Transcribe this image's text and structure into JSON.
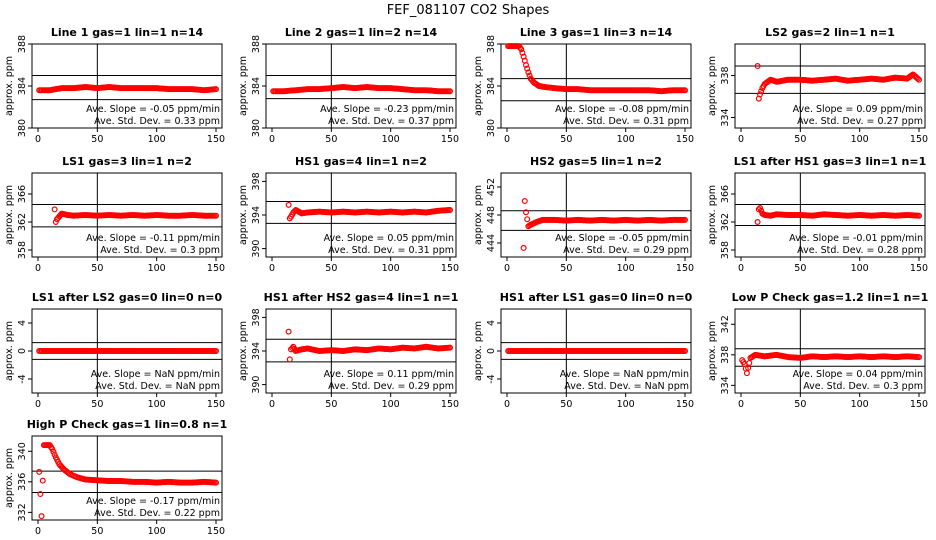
{
  "figure": {
    "title": "FEF_081107  CO2 Shapes",
    "ylabel": "approx. ppm",
    "annotation_prefixes": {
      "slope": "Ave. Slope = ",
      "sd": "Ave. Std. Dev. = "
    },
    "annotation_units": {
      "slope": " ppm/min",
      "sd": " ppm"
    },
    "point_color": "#ff0000",
    "line_color": "#000000"
  },
  "chart_data": [
    {
      "type": "scatter",
      "title": "Line 1 gas=1 lin=1 n=14",
      "xlim": [
        0,
        150
      ],
      "ylim": [
        380,
        388
      ],
      "yticks": [
        "380",
        "384",
        "388"
      ],
      "xticks": [
        "0",
        "50",
        "100",
        "150"
      ],
      "hlines": [
        385.0,
        382.7
      ],
      "vline": 50,
      "ave_slope": "-0.05",
      "ave_std_dev": "0.33",
      "points": [
        [
          1,
          383.6
        ],
        [
          10,
          383.6
        ],
        [
          20,
          383.8
        ],
        [
          30,
          383.8
        ],
        [
          40,
          383.9
        ],
        [
          50,
          383.8
        ],
        [
          60,
          383.9
        ],
        [
          70,
          383.8
        ],
        [
          80,
          383.8
        ],
        [
          90,
          383.8
        ],
        [
          100,
          383.8
        ],
        [
          110,
          383.7
        ],
        [
          120,
          383.7
        ],
        [
          130,
          383.7
        ],
        [
          140,
          383.6
        ],
        [
          150,
          383.7
        ]
      ]
    },
    {
      "type": "scatter",
      "title": "Line 2 gas=1 lin=2 n=14",
      "xlim": [
        0,
        150
      ],
      "ylim": [
        380,
        388
      ],
      "yticks": [
        "380",
        "384",
        "388"
      ],
      "xticks": [
        "0",
        "50",
        "100",
        "150"
      ],
      "hlines": [
        385.0,
        382.8
      ],
      "vline": 50,
      "ave_slope": "-0.23",
      "ave_std_dev": "0.37",
      "points": [
        [
          1,
          383.5
        ],
        [
          10,
          383.5
        ],
        [
          20,
          383.6
        ],
        [
          30,
          383.7
        ],
        [
          40,
          383.7
        ],
        [
          50,
          383.8
        ],
        [
          60,
          383.9
        ],
        [
          70,
          383.8
        ],
        [
          80,
          383.9
        ],
        [
          90,
          383.8
        ],
        [
          100,
          383.8
        ],
        [
          110,
          383.7
        ],
        [
          120,
          383.6
        ],
        [
          130,
          383.6
        ],
        [
          140,
          383.5
        ],
        [
          150,
          383.5
        ]
      ]
    },
    {
      "type": "scatter",
      "title": "Line 3 gas=1 lin=3 n=14",
      "xlim": [
        0,
        150
      ],
      "ylim": [
        380,
        388
      ],
      "yticks": [
        "380",
        "384",
        "388"
      ],
      "xticks": [
        "0",
        "50",
        "100",
        "150"
      ],
      "hlines": [
        384.7,
        382.6
      ],
      "vline": 50,
      "ave_slope": "-0.08",
      "ave_std_dev": "0.31",
      "points": [
        [
          1,
          387.8
        ],
        [
          4,
          387.8
        ],
        [
          7,
          387.8
        ],
        [
          10,
          387.8
        ],
        [
          12,
          387.5
        ],
        [
          14,
          386.8
        ],
        [
          16,
          386.0
        ],
        [
          18,
          385.3
        ],
        [
          20,
          384.7
        ],
        [
          23,
          384.3
        ],
        [
          27,
          384.0
        ],
        [
          32,
          383.9
        ],
        [
          40,
          383.8
        ],
        [
          50,
          383.7
        ],
        [
          60,
          383.7
        ],
        [
          70,
          383.6
        ],
        [
          80,
          383.6
        ],
        [
          90,
          383.6
        ],
        [
          100,
          383.6
        ],
        [
          110,
          383.6
        ],
        [
          120,
          383.6
        ],
        [
          130,
          383.5
        ],
        [
          140,
          383.6
        ],
        [
          150,
          383.6
        ]
      ]
    },
    {
      "type": "scatter",
      "title": "LS2 gas=2 lin=1 n=1",
      "xlim": [
        0,
        150
      ],
      "ylim": [
        333,
        341
      ],
      "yticks": [
        "334",
        "338"
      ],
      "xticks": [
        "0",
        "50",
        "100",
        "150"
      ],
      "hlines": [
        338.9,
        336.3
      ],
      "vline": 50,
      "ave_slope": "0.09",
      "ave_std_dev": "0.27",
      "points": [
        [
          14,
          338.9
        ],
        [
          15,
          335.8
        ],
        [
          16,
          336.2
        ],
        [
          18,
          336.8
        ],
        [
          20,
          337.2
        ],
        [
          25,
          337.6
        ],
        [
          30,
          337.4
        ],
        [
          40,
          337.6
        ],
        [
          50,
          337.6
        ],
        [
          60,
          337.5
        ],
        [
          70,
          337.6
        ],
        [
          80,
          337.7
        ],
        [
          90,
          337.5
        ],
        [
          100,
          337.6
        ],
        [
          110,
          337.7
        ],
        [
          120,
          337.6
        ],
        [
          130,
          337.8
        ],
        [
          140,
          337.7
        ],
        [
          145,
          338.1
        ],
        [
          150,
          337.6
        ]
      ]
    },
    {
      "type": "scatter",
      "title": "LS1 gas=3 lin=1 n=2",
      "xlim": [
        0,
        150
      ],
      "ylim": [
        357,
        369
      ],
      "yticks": [
        "358",
        "362",
        "366"
      ],
      "xticks": [
        "0",
        "50",
        "100",
        "150"
      ],
      "hlines": [
        364.5,
        361.3
      ],
      "vline": 50,
      "ave_slope": "-0.11",
      "ave_std_dev": "0.3",
      "points": [
        [
          14,
          363.8
        ],
        [
          15,
          362.0
        ],
        [
          16,
          362.4
        ],
        [
          18,
          362.8
        ],
        [
          20,
          363.2
        ],
        [
          25,
          363.0
        ],
        [
          30,
          362.9
        ],
        [
          40,
          363.0
        ],
        [
          50,
          362.9
        ],
        [
          60,
          363.0
        ],
        [
          70,
          362.9
        ],
        [
          80,
          363.0
        ],
        [
          90,
          362.9
        ],
        [
          100,
          363.0
        ],
        [
          110,
          362.9
        ],
        [
          120,
          362.9
        ],
        [
          130,
          363.0
        ],
        [
          140,
          362.9
        ],
        [
          150,
          362.9
        ]
      ]
    },
    {
      "type": "scatter",
      "title": "HS1 gas=4 lin=1 n=2",
      "xlim": [
        0,
        150
      ],
      "ylim": [
        389,
        399
      ],
      "yticks": [
        "390",
        "394",
        "398"
      ],
      "xticks": [
        "0",
        "50",
        "100",
        "150"
      ],
      "hlines": [
        395.6,
        393.0
      ],
      "vline": 50,
      "ave_slope": "0.05",
      "ave_std_dev": "0.31",
      "points": [
        [
          14,
          395.2
        ],
        [
          15,
          393.6
        ],
        [
          16,
          393.8
        ],
        [
          18,
          394.3
        ],
        [
          20,
          394.6
        ],
        [
          25,
          394.2
        ],
        [
          30,
          394.3
        ],
        [
          40,
          394.4
        ],
        [
          50,
          394.3
        ],
        [
          60,
          394.4
        ],
        [
          70,
          394.3
        ],
        [
          80,
          394.4
        ],
        [
          90,
          394.3
        ],
        [
          100,
          394.4
        ],
        [
          110,
          394.3
        ],
        [
          120,
          394.4
        ],
        [
          130,
          394.3
        ],
        [
          140,
          394.5
        ],
        [
          150,
          394.6
        ]
      ]
    },
    {
      "type": "scatter",
      "title": "HS2 gas=5 lin=1 n=2",
      "xlim": [
        0,
        150
      ],
      "ylim": [
        442,
        454
      ],
      "yticks": [
        "444",
        "448",
        "452"
      ],
      "xticks": [
        "0",
        "50",
        "100",
        "150"
      ],
      "hlines": [
        448.6,
        445.8
      ],
      "vline": 50,
      "ave_slope": "-0.05",
      "ave_std_dev": "0.29",
      "points": [
        [
          14,
          443.3
        ],
        [
          15,
          450.0
        ],
        [
          16,
          448.4
        ],
        [
          18,
          446.4
        ],
        [
          20,
          446.6
        ],
        [
          25,
          447.0
        ],
        [
          30,
          447.3
        ],
        [
          40,
          447.3
        ],
        [
          50,
          447.2
        ],
        [
          60,
          447.3
        ],
        [
          70,
          447.2
        ],
        [
          80,
          447.3
        ],
        [
          90,
          447.2
        ],
        [
          100,
          447.3
        ],
        [
          110,
          447.2
        ],
        [
          120,
          447.3
        ],
        [
          130,
          447.2
        ],
        [
          140,
          447.3
        ],
        [
          150,
          447.3
        ]
      ]
    },
    {
      "type": "scatter",
      "title": "LS1 after HS1 gas=3 lin=1 n=1",
      "xlim": [
        0,
        150
      ],
      "ylim": [
        357,
        369
      ],
      "yticks": [
        "358",
        "362",
        "366"
      ],
      "xticks": [
        "0",
        "50",
        "100",
        "150"
      ],
      "hlines": [
        364.5,
        361.5
      ],
      "vline": 50,
      "ave_slope": "-0.01",
      "ave_std_dev": "0.28",
      "points": [
        [
          14,
          362.0
        ],
        [
          15,
          363.8
        ],
        [
          16,
          364.0
        ],
        [
          18,
          363.2
        ],
        [
          20,
          363.0
        ],
        [
          25,
          362.9
        ],
        [
          30,
          363.1
        ],
        [
          40,
          363.0
        ],
        [
          50,
          363.0
        ],
        [
          60,
          362.9
        ],
        [
          70,
          363.1
        ],
        [
          80,
          363.0
        ],
        [
          90,
          362.9
        ],
        [
          100,
          363.0
        ],
        [
          110,
          362.9
        ],
        [
          120,
          363.0
        ],
        [
          130,
          362.9
        ],
        [
          140,
          363.0
        ],
        [
          150,
          362.9
        ]
      ]
    },
    {
      "type": "scatter",
      "title": "LS1 after LS2 gas=0 lin=0 n=0",
      "xlim": [
        0,
        150
      ],
      "ylim": [
        -6,
        6
      ],
      "yticks": [
        "-4",
        "0",
        "4"
      ],
      "xticks": [
        "0",
        "50",
        "100",
        "150"
      ],
      "hlines": [
        1.2,
        -1.2
      ],
      "vline": 50,
      "ave_slope": "NaN",
      "ave_std_dev": "NaN",
      "points": [
        [
          1,
          0
        ],
        [
          10,
          0
        ],
        [
          20,
          0
        ],
        [
          30,
          0
        ],
        [
          40,
          0
        ],
        [
          50,
          0
        ],
        [
          60,
          0
        ],
        [
          70,
          0
        ],
        [
          80,
          0
        ],
        [
          90,
          0
        ],
        [
          100,
          0
        ],
        [
          110,
          0
        ],
        [
          120,
          0
        ],
        [
          130,
          0
        ],
        [
          140,
          0
        ],
        [
          150,
          0
        ]
      ]
    },
    {
      "type": "scatter",
      "title": "HS1 after HS2 gas=4 lin=1 n=1",
      "xlim": [
        0,
        150
      ],
      "ylim": [
        389,
        399
      ],
      "yticks": [
        "390",
        "394",
        "398"
      ],
      "xticks": [
        "0",
        "50",
        "100",
        "150"
      ],
      "hlines": [
        395.4,
        392.7
      ],
      "vline": 50,
      "ave_slope": "0.11",
      "ave_std_dev": "0.29",
      "points": [
        [
          14,
          396.3
        ],
        [
          15,
          393.0
        ],
        [
          16,
          394.2
        ],
        [
          18,
          394.5
        ],
        [
          20,
          394.0
        ],
        [
          25,
          394.2
        ],
        [
          30,
          394.3
        ],
        [
          40,
          394.0
        ],
        [
          50,
          394.1
        ],
        [
          60,
          394.0
        ],
        [
          70,
          394.2
        ],
        [
          80,
          394.1
        ],
        [
          90,
          394.3
        ],
        [
          100,
          394.2
        ],
        [
          110,
          394.4
        ],
        [
          120,
          394.3
        ],
        [
          130,
          394.5
        ],
        [
          140,
          394.3
        ],
        [
          150,
          394.4
        ]
      ]
    },
    {
      "type": "scatter",
      "title": "HS1 after LS1 gas=0 lin=0 n=0",
      "xlim": [
        0,
        150
      ],
      "ylim": [
        -6,
        6
      ],
      "yticks": [
        "-4",
        "0",
        "4"
      ],
      "xticks": [
        "0",
        "50",
        "100",
        "150"
      ],
      "hlines": [
        1.2,
        -1.2
      ],
      "vline": 50,
      "ave_slope": "NaN",
      "ave_std_dev": "NaN",
      "points": [
        [
          1,
          0
        ],
        [
          10,
          0
        ],
        [
          20,
          0
        ],
        [
          30,
          0
        ],
        [
          40,
          0
        ],
        [
          50,
          0
        ],
        [
          60,
          0
        ],
        [
          70,
          0
        ],
        [
          80,
          0
        ],
        [
          90,
          0
        ],
        [
          100,
          0
        ],
        [
          110,
          0
        ],
        [
          120,
          0
        ],
        [
          130,
          0
        ],
        [
          140,
          0
        ],
        [
          150,
          0
        ]
      ]
    },
    {
      "type": "scatter",
      "title": "Low P Check gas=1.2 lin=1 n=1",
      "xlim": [
        0,
        150
      ],
      "ylim": [
        333,
        344
      ],
      "yticks": [
        "334",
        "338",
        "342"
      ],
      "xticks": [
        "0",
        "50",
        "100",
        "150"
      ],
      "hlines": [
        338.8,
        336.5
      ],
      "vline": 50,
      "ave_slope": "0.04",
      "ave_std_dev": "0.3",
      "points": [
        [
          1,
          337.3
        ],
        [
          3,
          336.8
        ],
        [
          5,
          335.6
        ],
        [
          8,
          337.6
        ],
        [
          12,
          338.0
        ],
        [
          20,
          337.8
        ],
        [
          30,
          338.0
        ],
        [
          40,
          337.7
        ],
        [
          50,
          337.6
        ],
        [
          60,
          337.8
        ],
        [
          70,
          337.7
        ],
        [
          80,
          337.8
        ],
        [
          90,
          337.7
        ],
        [
          100,
          337.8
        ],
        [
          110,
          337.7
        ],
        [
          120,
          337.8
        ],
        [
          130,
          337.7
        ],
        [
          140,
          337.8
        ],
        [
          150,
          337.7
        ]
      ]
    },
    {
      "type": "scatter",
      "title": "High P Check gas=1 lin=0.8 n=1",
      "xlim": [
        0,
        150
      ],
      "ylim": [
        331,
        342
      ],
      "yticks": [
        "332",
        "336",
        "340"
      ],
      "xticks": [
        "0",
        "50",
        "100",
        "150"
      ],
      "hlines": [
        337.4,
        334.6
      ],
      "vline": 50,
      "ave_slope": "-0.17",
      "ave_std_dev": "0.22",
      "points": [
        [
          1,
          337.3
        ],
        [
          3,
          331.5
        ],
        [
          5,
          340.8
        ],
        [
          10,
          340.8
        ],
        [
          12,
          340.3
        ],
        [
          15,
          339.2
        ],
        [
          18,
          338.3
        ],
        [
          22,
          337.6
        ],
        [
          27,
          337.0
        ],
        [
          33,
          336.6
        ],
        [
          40,
          336.3
        ],
        [
          50,
          336.2
        ],
        [
          60,
          336.1
        ],
        [
          70,
          336.1
        ],
        [
          80,
          336.0
        ],
        [
          90,
          336.0
        ],
        [
          100,
          335.9
        ],
        [
          110,
          336.0
        ],
        [
          120,
          335.9
        ],
        [
          130,
          335.9
        ],
        [
          140,
          336.0
        ],
        [
          150,
          335.9
        ]
      ]
    }
  ]
}
